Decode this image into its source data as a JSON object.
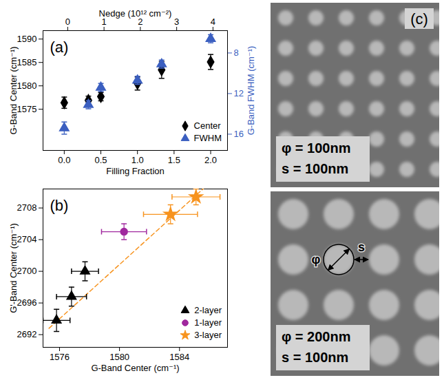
{
  "chart_data": [
    {
      "type": "scatter",
      "panel_label": "(a)",
      "xlabel": "Filling Fraction",
      "x2label": "Nedge (10¹² cm⁻²)",
      "ylabel": "G-Band Center (cm⁻¹)",
      "y2label": "G-Band FWHM (cm⁻¹)",
      "xlim": [
        -0.29,
        2.23
      ],
      "xticks": [
        {
          "value": 0,
          "label": "0.0"
        },
        0.5,
        {
          "value": 1,
          "label": "1.0"
        },
        1.5,
        {
          "value": 2,
          "label": "2.0"
        }
      ],
      "x2lim": [
        -0.68,
        4.4
      ],
      "x2ticks": [
        0,
        1,
        2,
        3,
        4
      ],
      "ylim": [
        1566.2,
        1591.8
      ],
      "yticks": [
        1575,
        1580,
        1585,
        1590
      ],
      "y2lim": [
        17.6,
        5.8
      ],
      "y2ticks": [
        8,
        12,
        16
      ],
      "x": [
        0,
        0.33,
        0.5,
        1.0,
        1.33,
        2.0
      ],
      "series": [
        {
          "name": "Center",
          "color": "#000000",
          "marker": "diamond",
          "values": [
            1576.4,
            1576.9,
            1577.7,
            1580.5,
            1583.4,
            1585.1
          ],
          "y_errors": [
            1.2,
            0.9,
            0.9,
            1.4,
            1.8,
            1.6
          ]
        },
        {
          "name": "FWHM",
          "color": "#3b5fc0",
          "marker": "triangle",
          "axis": "y2",
          "values": [
            15.4,
            13.1,
            11.4,
            10.7,
            9.1,
            6.6
          ],
          "y_errors": [
            0.6,
            0.4,
            0.4,
            0.4,
            0.4,
            0.4
          ]
        }
      ],
      "legend": "lower right"
    },
    {
      "type": "scatter",
      "panel_label": "(b)",
      "xlabel": "G-Band Center (cm⁻¹)",
      "ylabel": "G'-Band Center (cm⁻¹)",
      "xlim": [
        1574.9,
        1587.2
      ],
      "xticks": [
        1576,
        1580,
        1584
      ],
      "ylim": [
        2690.4,
        2710.4
      ],
      "yticks": [
        2692,
        2696,
        2700,
        2704,
        2708
      ],
      "series": [
        {
          "name": "2-layer",
          "color": "#000000",
          "marker": "triangle",
          "x": [
            1575.8,
            1576.8,
            1577.7
          ],
          "values": [
            2693.8,
            2696.8,
            2700.0
          ],
          "x_errors": [
            0.9,
            1.0,
            0.9
          ],
          "y_errors": [
            1.4,
            1.2,
            1.2
          ]
        },
        {
          "name": "1-layer",
          "color": "#a0289e",
          "marker": "circle",
          "x": [
            1580.3
          ],
          "values": [
            2705.0
          ],
          "x_errors": [
            1.5
          ],
          "y_errors": [
            1.0
          ]
        },
        {
          "name": "3-layer",
          "color": "#f7931e",
          "marker": "star",
          "x": [
            1583.4,
            1585.1
          ],
          "values": [
            2707.2,
            2709.4
          ],
          "x_errors": [
            1.8,
            1.6
          ],
          "y_errors": [
            1.2,
            1.0
          ]
        }
      ],
      "fit": {
        "x": [
          1575.3,
          1585.8
        ],
        "y": [
          2692.8,
          2710.8
        ],
        "color": "#f7931e",
        "line_style": "dashed"
      },
      "legend": "lower right"
    },
    {
      "type": "image",
      "panel_label": "(c)",
      "images": [
        {
          "diameter": 100,
          "spacing": 100,
          "labels": [
            "φ = 100nm",
            "s = 100nm"
          ]
        },
        {
          "diameter": 200,
          "spacing": 100,
          "labels": [
            "φ = 200nm",
            "s = 100nm"
          ],
          "markers": [
            "φ",
            "s"
          ]
        }
      ]
    }
  ]
}
